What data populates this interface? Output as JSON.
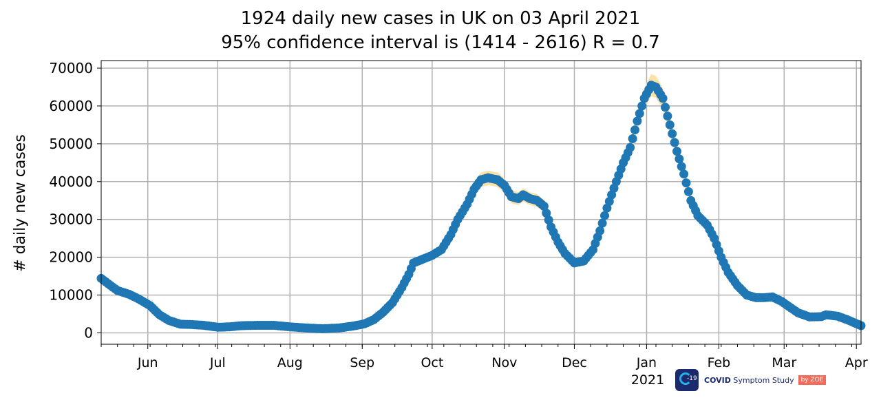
{
  "chart_data": {
    "type": "scatter",
    "title": "1924 daily new cases in UK on 03 April 2021",
    "subtitle": "95% confidence interval is (1414 - 2616) R = 0.7",
    "ylabel": "# daily new cases",
    "xlabel": "",
    "ylim": [
      -3000,
      72000
    ],
    "yticks": [
      0,
      10000,
      20000,
      30000,
      40000,
      50000,
      60000,
      70000
    ],
    "xrange": [
      "2020-05-12",
      "2021-04-03"
    ],
    "xticks": [
      {
        "date": "2020-06-01",
        "label": "Jun"
      },
      {
        "date": "2020-07-01",
        "label": "Jul"
      },
      {
        "date": "2020-08-01",
        "label": "Aug"
      },
      {
        "date": "2020-09-01",
        "label": "Sep"
      },
      {
        "date": "2020-10-01",
        "label": "Oct"
      },
      {
        "date": "2020-11-01",
        "label": "Nov"
      },
      {
        "date": "2020-12-01",
        "label": "Dec"
      },
      {
        "date": "2021-01-01",
        "label": "Jan",
        "year": "2021"
      },
      {
        "date": "2021-02-01",
        "label": "Feb"
      },
      {
        "date": "2021-03-01",
        "label": "Mar"
      },
      {
        "date": "2021-04-01",
        "label": "Apr"
      }
    ],
    "grid": true,
    "colors": {
      "points": "#1f77b4",
      "confidence_band": "#ffe0a8",
      "grid": "#b0b0b0"
    },
    "series": [
      {
        "points": [
          [
            "2020-05-12",
            14400
          ],
          [
            "2020-05-15",
            13000
          ],
          [
            "2020-05-19",
            11200
          ],
          [
            "2020-05-24",
            10200
          ],
          [
            "2020-05-28",
            9000
          ],
          [
            "2020-06-02",
            7200
          ],
          [
            "2020-06-06",
            4800
          ],
          [
            "2020-06-10",
            3300
          ],
          [
            "2020-06-15",
            2300
          ],
          [
            "2020-06-20",
            2200
          ],
          [
            "2020-06-25",
            2000
          ],
          [
            "2020-07-01",
            1500
          ],
          [
            "2020-07-06",
            1600
          ],
          [
            "2020-07-11",
            1900
          ],
          [
            "2020-07-18",
            2000
          ],
          [
            "2020-07-25",
            2000
          ],
          [
            "2020-08-01",
            1600
          ],
          [
            "2020-08-08",
            1300
          ],
          [
            "2020-08-15",
            1100
          ],
          [
            "2020-08-22",
            1300
          ],
          [
            "2020-08-28",
            1800
          ],
          [
            "2020-09-02",
            2400
          ],
          [
            "2020-09-06",
            3500
          ],
          [
            "2020-09-10",
            5500
          ],
          [
            "2020-09-14",
            8000
          ],
          [
            "2020-09-18",
            12000
          ],
          [
            "2020-09-21",
            15500
          ],
          [
            "2020-09-23",
            18500
          ],
          [
            "2020-09-27",
            19500
          ],
          [
            "2020-10-01",
            20500
          ],
          [
            "2020-10-05",
            22000
          ],
          [
            "2020-10-09",
            26000
          ],
          [
            "2020-10-12",
            30000
          ],
          [
            "2020-10-16",
            34000
          ],
          [
            "2020-10-19",
            38000
          ],
          [
            "2020-10-22",
            40500
          ],
          [
            "2020-10-25",
            41000
          ],
          [
            "2020-10-29",
            40500
          ],
          [
            "2020-11-01",
            39000
          ],
          [
            "2020-11-04",
            36000
          ],
          [
            "2020-11-07",
            35500
          ],
          [
            "2020-11-09",
            36500
          ],
          [
            "2020-11-12",
            35500
          ],
          [
            "2020-11-15",
            35000
          ],
          [
            "2020-11-18",
            33500
          ],
          [
            "2020-11-21",
            28000
          ],
          [
            "2020-11-24",
            24000
          ],
          [
            "2020-11-27",
            21000
          ],
          [
            "2020-12-01",
            18500
          ],
          [
            "2020-12-05",
            19000
          ],
          [
            "2020-12-09",
            22000
          ],
          [
            "2020-12-12",
            27000
          ],
          [
            "2020-12-15",
            33000
          ],
          [
            "2020-12-19",
            40000
          ],
          [
            "2020-12-22",
            45000
          ],
          [
            "2020-12-25",
            49000
          ],
          [
            "2020-12-28",
            56000
          ],
          [
            "2020-12-31",
            62000
          ],
          [
            "2021-01-03",
            65500
          ],
          [
            "2021-01-05",
            65000
          ],
          [
            "2021-01-08",
            62000
          ],
          [
            "2021-01-11",
            55000
          ],
          [
            "2021-01-14",
            48000
          ],
          [
            "2021-01-17",
            42000
          ],
          [
            "2021-01-20",
            35000
          ],
          [
            "2021-01-23",
            31000
          ],
          [
            "2021-01-27",
            28500
          ],
          [
            "2021-01-30",
            25000
          ],
          [
            "2021-02-02",
            20000
          ],
          [
            "2021-02-05",
            16000
          ],
          [
            "2021-02-09",
            12500
          ],
          [
            "2021-02-13",
            10000
          ],
          [
            "2021-02-17",
            9300
          ],
          [
            "2021-02-20",
            9300
          ],
          [
            "2021-02-24",
            9500
          ],
          [
            "2021-02-28",
            8300
          ],
          [
            "2021-03-03",
            7000
          ],
          [
            "2021-03-07",
            5300
          ],
          [
            "2021-03-12",
            4200
          ],
          [
            "2021-03-17",
            4300
          ],
          [
            "2021-03-19",
            4800
          ],
          [
            "2021-03-24",
            4400
          ],
          [
            "2021-03-28",
            3500
          ],
          [
            "2021-04-03",
            1924
          ]
        ]
      }
    ]
  },
  "footer": {
    "year_label": "2021",
    "logo_badge": "-19",
    "logo_name_strong": "COVID",
    "logo_name_rest": " Symptom Study",
    "logo_by": "by ZOE"
  }
}
